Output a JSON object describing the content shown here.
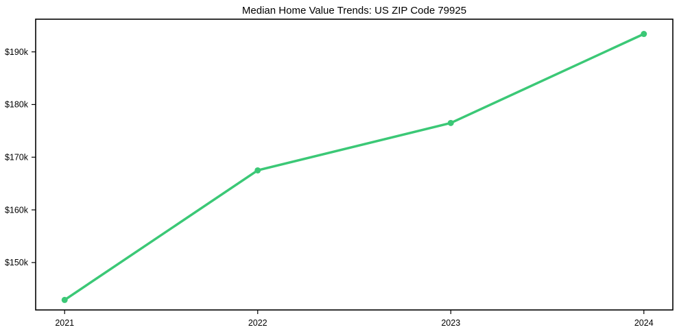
{
  "chart_data": {
    "type": "line",
    "title": "Median Home Value Trends: US ZIP Code 79925",
    "x": [
      2021,
      2022,
      2023,
      2024
    ],
    "x_tick_labels": [
      "2021",
      "2022",
      "2023",
      "2024"
    ],
    "series": [
      {
        "name": "median-home-value",
        "values": [
          142900,
          167500,
          176500,
          193400
        ],
        "color": "#3bc876",
        "marker": "circle"
      }
    ],
    "y_ticks": [
      150000,
      160000,
      170000,
      180000,
      190000
    ],
    "y_tick_labels": [
      "$150k",
      "$160k",
      "$170k",
      "$180k",
      "$190k"
    ],
    "xlabel": "",
    "ylabel": "",
    "xlim": [
      2020.85,
      2024.15
    ],
    "ylim": [
      141000,
      196200
    ],
    "grid": false,
    "legend": "none",
    "background_color": "#ffffff",
    "axis_color": "#000000",
    "text_color": "#000000"
  }
}
